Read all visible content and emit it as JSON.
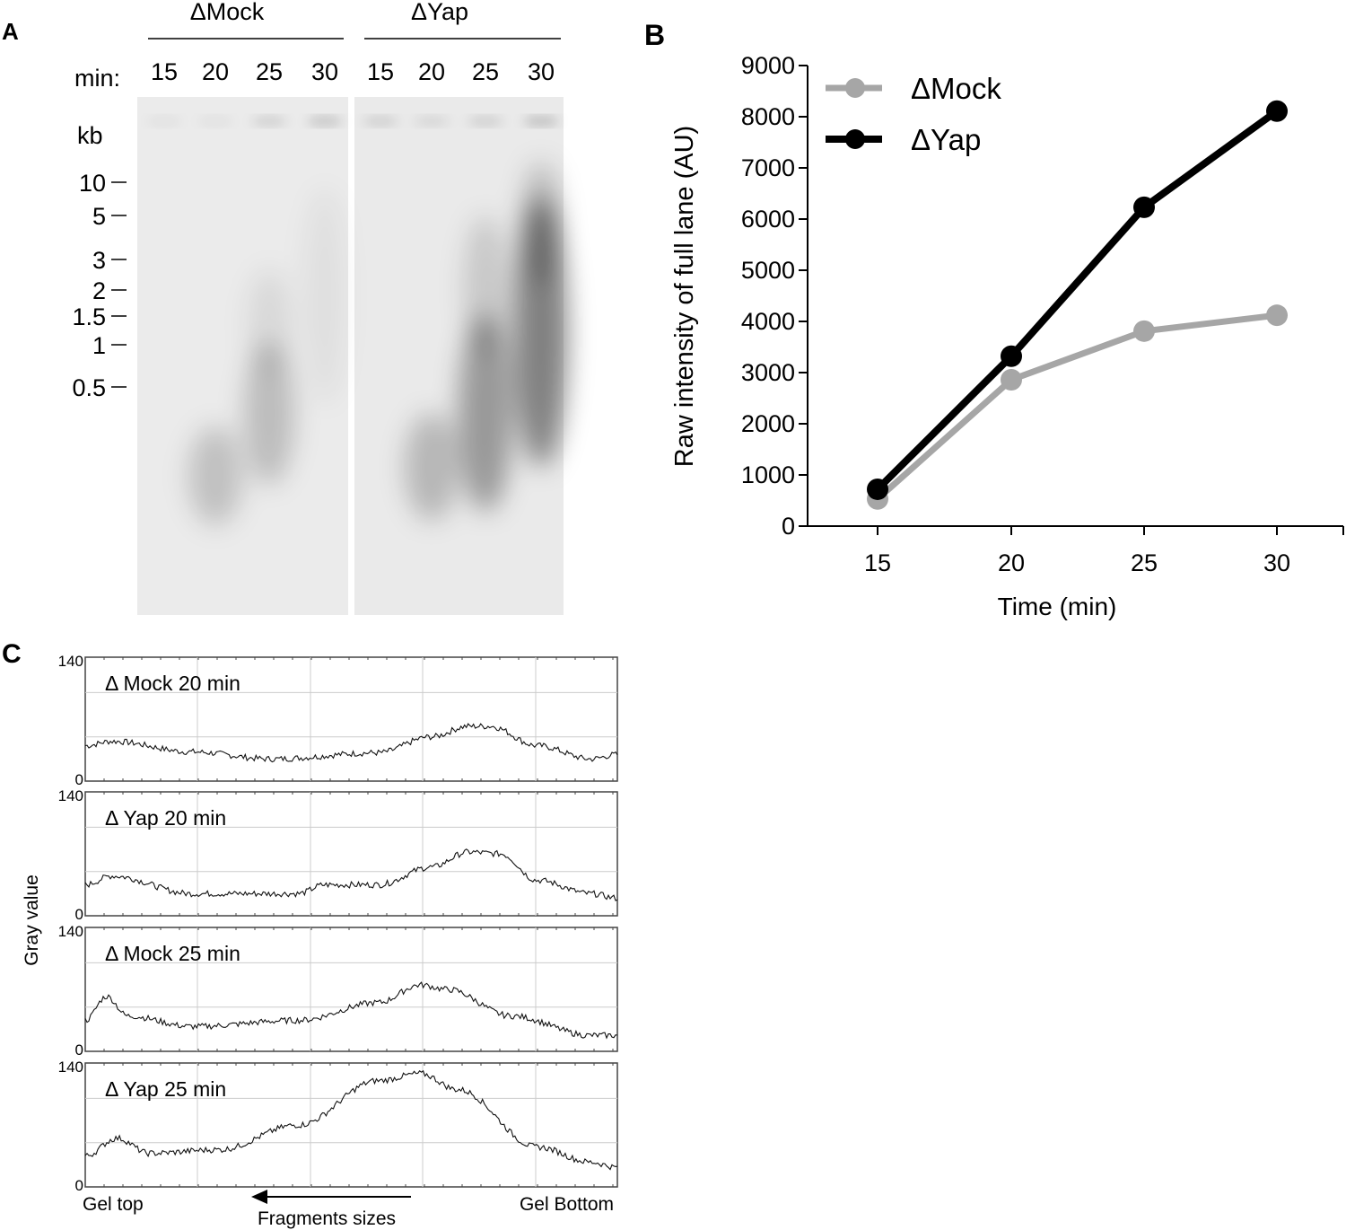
{
  "panel_a": {
    "letter": "A",
    "group_labels": [
      "ΔMock",
      "ΔYap"
    ],
    "min_label": "min:",
    "lane_times": [
      "15",
      "20",
      "25",
      "30",
      "15",
      "20",
      "25",
      "30"
    ],
    "kb_label": "kb",
    "markers": [
      "10",
      "5",
      "3",
      "2",
      "1.5",
      "1",
      "0.5"
    ]
  },
  "panel_b": {
    "letter": "B"
  },
  "panel_c": {
    "letter": "C",
    "ylabel": "Gray value",
    "gel_top": "Gel top",
    "gel_bottom": "Gel Bottom",
    "arrow_label": "Fragments sizes"
  },
  "chart_data": [
    {
      "type": "line",
      "x": [
        15,
        20,
        25,
        30
      ],
      "xlabel": "Time (min)",
      "ylabel": "Raw intensity of full lane (AU)",
      "xticks": [
        "15",
        "20",
        "25",
        "30"
      ],
      "yticks": [
        "0",
        "1000",
        "2000",
        "3000",
        "4000",
        "5000",
        "6000",
        "7000",
        "8000",
        "9000"
      ],
      "ylim": [
        0,
        9000
      ],
      "grid": false,
      "legend": "top-left",
      "series": [
        {
          "name": "ΔMock",
          "color": "#a6a6a6",
          "values": [
            530,
            2860,
            3810,
            4120
          ]
        },
        {
          "name": "ΔYap",
          "color": "#000000",
          "values": [
            720,
            3320,
            6230,
            8110
          ]
        }
      ]
    },
    {
      "type": "line",
      "ylim": [
        0,
        140
      ],
      "yticks": [
        "0",
        "140"
      ],
      "grid": true,
      "profiles": [
        {
          "name": "Δ Mock 20 min",
          "x": [
            0,
            0.05,
            0.2,
            0.35,
            0.55,
            0.65,
            0.72,
            0.76,
            0.85,
            0.95,
            1
          ],
          "values": [
            40,
            45,
            33,
            25,
            32,
            50,
            62,
            62,
            40,
            25,
            30
          ]
        },
        {
          "name": "Δ Yap 20 min",
          "x": [
            0,
            0.05,
            0.2,
            0.4,
            0.45,
            0.55,
            0.65,
            0.72,
            0.78,
            0.85,
            0.95,
            1
          ],
          "values": [
            35,
            45,
            25,
            25,
            35,
            35,
            55,
            72,
            70,
            40,
            25,
            20
          ]
        },
        {
          "name": "Δ Mock 25 min",
          "x": [
            0,
            0.04,
            0.08,
            0.2,
            0.4,
            0.55,
            0.63,
            0.68,
            0.8,
            0.95,
            1
          ],
          "values": [
            35,
            62,
            40,
            28,
            35,
            55,
            75,
            70,
            40,
            18,
            18
          ]
        },
        {
          "name": "Δ Yap 25 min",
          "x": [
            0,
            0.06,
            0.12,
            0.25,
            0.4,
            0.55,
            0.63,
            0.7,
            0.85,
            0.95,
            1
          ],
          "values": [
            35,
            55,
            38,
            42,
            70,
            120,
            128,
            110,
            45,
            28,
            22
          ]
        }
      ]
    }
  ]
}
